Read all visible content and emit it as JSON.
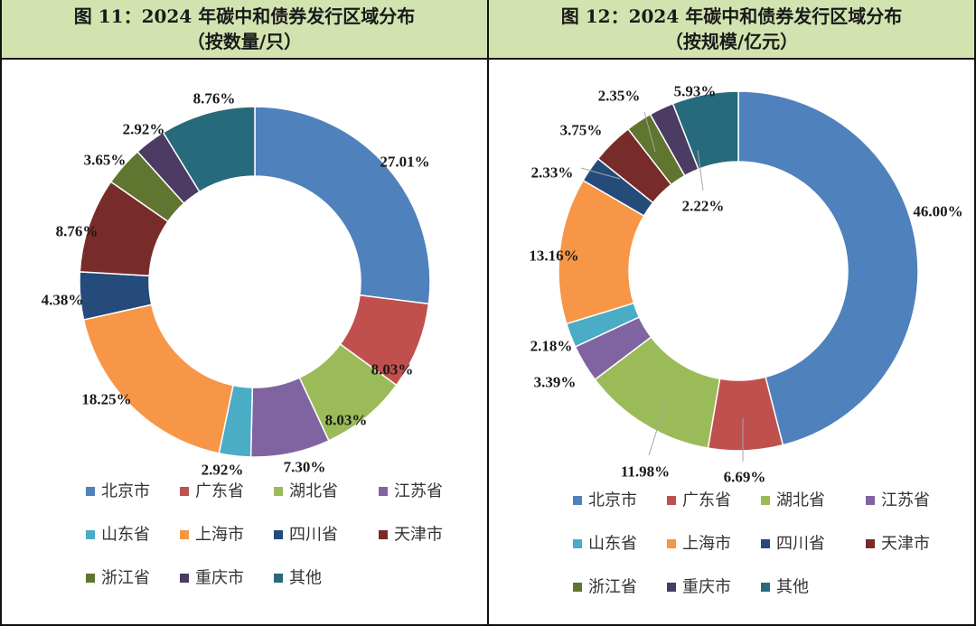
{
  "legend": [
    "北京市",
    "广东省",
    "湖北省",
    "江苏省",
    "山东省",
    "上海市",
    "四川省",
    "天津市",
    "浙江省",
    "重庆市",
    "其他"
  ],
  "colors": [
    "#4f81bd",
    "#c0504d",
    "#9bbb59",
    "#8064a2",
    "#4bacc6",
    "#f79646",
    "#254b7a",
    "#772c2a",
    "#5f7530",
    "#4c3b62",
    "#276a7c"
  ],
  "chart_data": [
    {
      "type": "pie",
      "donut": true,
      "title": "图 11：2024 年碳中和债券发行区域分布",
      "subtitle": "（按数量/只）",
      "categories": [
        "北京市",
        "广东省",
        "湖北省",
        "江苏省",
        "山东省",
        "上海市",
        "四川省",
        "天津市",
        "浙江省",
        "重庆市",
        "其他"
      ],
      "values": [
        27.01,
        8.03,
        8.03,
        7.3,
        2.92,
        18.25,
        4.38,
        8.76,
        3.65,
        2.92,
        8.76
      ],
      "labels": [
        "27.01%",
        "8.03%",
        "8.03%",
        "7.30%",
        "2.92%",
        "18.25%",
        "4.38%",
        "8.76%",
        "3.65%",
        "2.92%",
        "8.76%"
      ],
      "unit": "%"
    },
    {
      "type": "pie",
      "donut": true,
      "title": "图 12：2024 年碳中和债券发行区域分布",
      "subtitle": "（按规模/亿元）",
      "categories": [
        "北京市",
        "广东省",
        "湖北省",
        "江苏省",
        "山东省",
        "上海市",
        "四川省",
        "天津市",
        "浙江省",
        "重庆市",
        "其他"
      ],
      "values": [
        46.0,
        6.69,
        11.98,
        3.39,
        2.18,
        13.16,
        2.33,
        3.75,
        2.35,
        2.22,
        5.93
      ],
      "labels": [
        "46.00%",
        "6.69%",
        "11.98%",
        "3.39%",
        "2.18%",
        "13.16%",
        "2.33%",
        "3.75%",
        "2.35%",
        "2.22%",
        "5.93%"
      ],
      "unit": "%"
    }
  ]
}
